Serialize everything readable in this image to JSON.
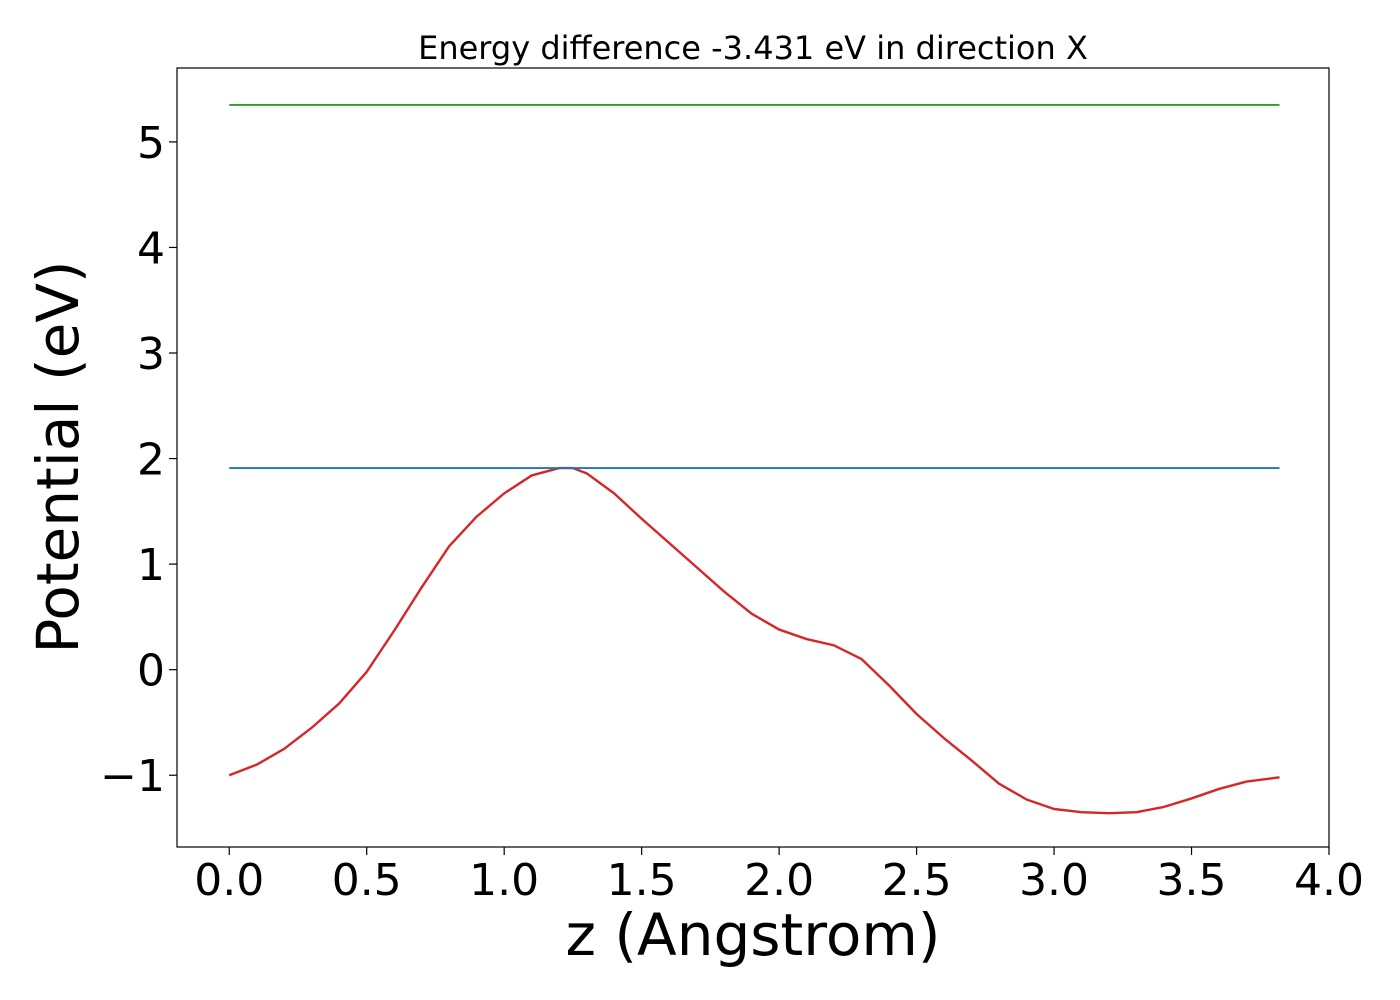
{
  "chart_data": {
    "type": "line",
    "title": "Energy difference -3.431 eV in direction X",
    "xlabel": "z (Angstrom)",
    "ylabel": "Potential (eV)",
    "xlim": [
      -0.19,
      4.0
    ],
    "ylim": [
      -1.68,
      5.7
    ],
    "xticks": [
      0.0,
      0.5,
      1.0,
      1.5,
      2.0,
      2.5,
      3.0,
      3.5,
      4.0
    ],
    "xtick_labels": [
      "0.0",
      "0.5",
      "1.0",
      "1.5",
      "2.0",
      "2.5",
      "3.0",
      "3.5",
      "4.0"
    ],
    "yticks": [
      -1,
      0,
      1,
      2,
      3,
      4,
      5
    ],
    "ytick_labels": [
      "−1",
      "0",
      "1",
      "2",
      "3",
      "4",
      "5"
    ],
    "grid": false,
    "series": [
      {
        "color": "#d62728",
        "x": [
          0.0,
          0.1,
          0.2,
          0.3,
          0.4,
          0.5,
          0.6,
          0.7,
          0.8,
          0.9,
          1.0,
          1.1,
          1.2,
          1.25,
          1.3,
          1.4,
          1.5,
          1.6,
          1.7,
          1.8,
          1.9,
          2.0,
          2.1,
          2.2,
          2.3,
          2.4,
          2.5,
          2.6,
          2.7,
          2.8,
          2.9,
          3.0,
          3.1,
          3.2,
          3.3,
          3.4,
          3.5,
          3.6,
          3.7,
          3.82
        ],
        "y": [
          -1.0,
          -0.9,
          -0.75,
          -0.55,
          -0.32,
          -0.02,
          0.37,
          0.78,
          1.17,
          1.45,
          1.67,
          1.84,
          1.91,
          1.91,
          1.86,
          1.67,
          1.43,
          1.2,
          0.97,
          0.74,
          0.53,
          0.38,
          0.29,
          0.23,
          0.1,
          -0.15,
          -0.42,
          -0.65,
          -0.86,
          -1.08,
          -1.23,
          -1.32,
          -1.35,
          -1.36,
          -1.35,
          -1.3,
          -1.22,
          -1.13,
          -1.06,
          -1.02
        ]
      },
      {
        "color": "#1f77b4",
        "x": [
          0.0,
          3.82
        ],
        "y": [
          1.91,
          1.91
        ]
      },
      {
        "color": "#2ca02c",
        "x": [
          0.0,
          3.82
        ],
        "y": [
          5.35,
          5.35
        ]
      }
    ]
  }
}
